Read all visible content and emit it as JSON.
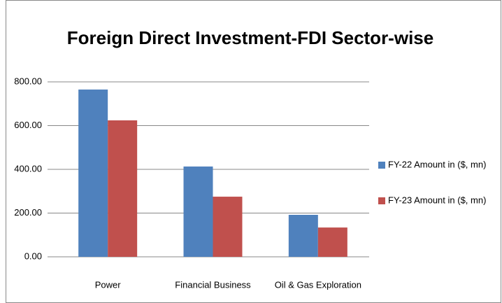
{
  "chart_data": {
    "type": "bar",
    "title": "Foreign Direct Investment-FDI Sector-wise",
    "categories": [
      "Power",
      "Financial Business",
      "Oil & Gas Exploration"
    ],
    "series": [
      {
        "name": "FY-22 Amount in ($, mn)",
        "color": "#4f81bd",
        "values": [
          765,
          413,
          192
        ]
      },
      {
        "name": "FY-23 Amount in ($, mn)",
        "color": "#c0504d",
        "values": [
          624,
          275,
          134
        ]
      }
    ],
    "ylim": [
      0,
      800
    ],
    "yticks": [
      {
        "value": 0,
        "label": "0.00"
      },
      {
        "value": 200,
        "label": "200.00"
      },
      {
        "value": 400,
        "label": "400.00"
      },
      {
        "value": 600,
        "label": "600.00"
      },
      {
        "value": 800,
        "label": "800.00"
      }
    ],
    "grid": true,
    "legend": "right"
  }
}
